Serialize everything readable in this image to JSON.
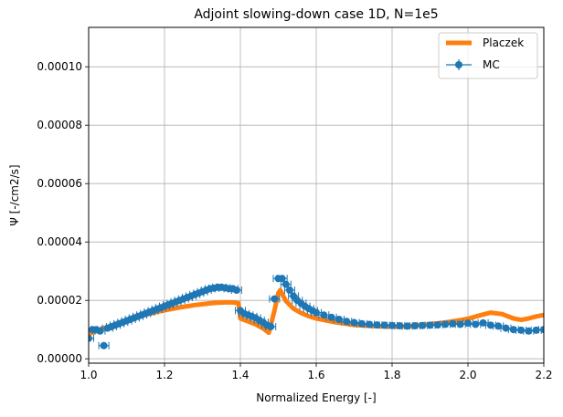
{
  "chart_data": {
    "type": "line",
    "title": "Adjoint slowing-down case 1D, N=1e5",
    "xlabel": "Normalized Energy [-]",
    "ylabel": "Ψ [-/cm2/s]",
    "xlim": [
      1.0,
      2.2
    ],
    "ylim": [
      -1.5e-06,
      0.0001135
    ],
    "grid": true,
    "legend_position": "top-right",
    "x_ticks": [
      {
        "value": 1.0,
        "label": "1.0"
      },
      {
        "value": 1.2,
        "label": "1.2"
      },
      {
        "value": 1.4,
        "label": "1.4"
      },
      {
        "value": 1.6,
        "label": "1.6"
      },
      {
        "value": 1.8,
        "label": "1.8"
      },
      {
        "value": 2.0,
        "label": "2.0"
      },
      {
        "value": 2.2,
        "label": "2.2"
      }
    ],
    "y_ticks": [
      {
        "value": 0.0,
        "label": "0.00000"
      },
      {
        "value": 2e-05,
        "label": "0.00002"
      },
      {
        "value": 4e-05,
        "label": "0.00004"
      },
      {
        "value": 6e-05,
        "label": "0.00006"
      },
      {
        "value": 8e-05,
        "label": "0.00008"
      },
      {
        "value": 0.0001,
        "label": "0.00010"
      }
    ],
    "series": [
      {
        "name": "Placzek",
        "kind": "line",
        "color": "#ff7f0e",
        "x": [
          1.0,
          1.02,
          1.04,
          1.06,
          1.08,
          1.1,
          1.12,
          1.14,
          1.16,
          1.18,
          1.2,
          1.22,
          1.24,
          1.26,
          1.28,
          1.3,
          1.32,
          1.34,
          1.36,
          1.38,
          1.395,
          1.4,
          1.42,
          1.44,
          1.46,
          1.475,
          1.49,
          1.5,
          1.505,
          1.52,
          1.54,
          1.56,
          1.58,
          1.6,
          1.65,
          1.7,
          1.75,
          1.8,
          1.85,
          1.9,
          1.95,
          2.0,
          2.03,
          2.06,
          2.09,
          2.12,
          2.14,
          2.16,
          2.18,
          2.2
        ],
        "y": [
          8.5e-06,
          9.5e-06,
          1.05e-05,
          1.13e-05,
          1.21e-05,
          1.3e-05,
          1.39e-05,
          1.47e-05,
          1.54e-05,
          1.6e-05,
          1.66e-05,
          1.71e-05,
          1.76e-05,
          1.8e-05,
          1.84e-05,
          1.87e-05,
          1.9e-05,
          1.92e-05,
          1.93e-05,
          1.93e-05,
          1.9e-05,
          1.38e-05,
          1.28e-05,
          1.18e-05,
          1.04e-05,
          8.9e-06,
          1.65e-05,
          2.25e-05,
          2.35e-05,
          1.98e-05,
          1.72e-05,
          1.57e-05,
          1.46e-05,
          1.38e-05,
          1.25e-05,
          1.16e-05,
          1.12e-05,
          1.1e-05,
          1.12e-05,
          1.18e-05,
          1.26e-05,
          1.37e-05,
          1.48e-05,
          1.58e-05,
          1.53e-05,
          1.38e-05,
          1.33e-05,
          1.38e-05,
          1.45e-05,
          1.5e-05
        ]
      },
      {
        "name": "MC",
        "kind": "errorbar",
        "color": "#1f77b4",
        "x": [
          1.0,
          1.01,
          1.02,
          1.03,
          1.04,
          1.05,
          1.06,
          1.07,
          1.08,
          1.09,
          1.1,
          1.11,
          1.12,
          1.13,
          1.14,
          1.15,
          1.16,
          1.17,
          1.18,
          1.19,
          1.2,
          1.21,
          1.22,
          1.23,
          1.24,
          1.25,
          1.26,
          1.27,
          1.28,
          1.29,
          1.3,
          1.31,
          1.32,
          1.33,
          1.34,
          1.35,
          1.36,
          1.37,
          1.38,
          1.39,
          1.4,
          1.41,
          1.42,
          1.43,
          1.44,
          1.45,
          1.46,
          1.47,
          1.48,
          1.49,
          1.5,
          1.51,
          1.52,
          1.53,
          1.54,
          1.55,
          1.56,
          1.57,
          1.58,
          1.59,
          1.6,
          1.62,
          1.64,
          1.66,
          1.68,
          1.7,
          1.72,
          1.74,
          1.76,
          1.78,
          1.8,
          1.82,
          1.84,
          1.86,
          1.88,
          1.9,
          1.92,
          1.94,
          1.96,
          1.98,
          2.0,
          2.02,
          2.04,
          2.06,
          2.08,
          2.1,
          2.12,
          2.14,
          2.16,
          2.18,
          2.2
        ],
        "y": [
          7e-06,
          1e-05,
          1e-05,
          9.5e-06,
          4.5e-06,
          1.05e-05,
          1.1e-05,
          1.15e-05,
          1.2e-05,
          1.25e-05,
          1.3e-05,
          1.35e-05,
          1.4e-05,
          1.45e-05,
          1.5e-05,
          1.55e-05,
          1.6e-05,
          1.65e-05,
          1.7e-05,
          1.75e-05,
          1.8e-05,
          1.85e-05,
          1.9e-05,
          1.95e-05,
          2e-05,
          2.05e-05,
          2.1e-05,
          2.15e-05,
          2.2e-05,
          2.25e-05,
          2.3e-05,
          2.35e-05,
          2.4e-05,
          2.42e-05,
          2.45e-05,
          2.45e-05,
          2.43e-05,
          2.4e-05,
          2.4e-05,
          2.35e-05,
          1.65e-05,
          1.55e-05,
          1.5e-05,
          1.45e-05,
          1.4e-05,
          1.32e-05,
          1.25e-05,
          1.15e-05,
          1.1e-05,
          2.05e-05,
          2.75e-05,
          2.75e-05,
          2.55e-05,
          2.35e-05,
          2.15e-05,
          2e-05,
          1.9e-05,
          1.8e-05,
          1.72e-05,
          1.65e-05,
          1.58e-05,
          1.5e-05,
          1.42e-05,
          1.35e-05,
          1.28e-05,
          1.24e-05,
          1.2e-05,
          1.18e-05,
          1.16e-05,
          1.15e-05,
          1.14e-05,
          1.13e-05,
          1.12e-05,
          1.13e-05,
          1.14e-05,
          1.15e-05,
          1.16e-05,
          1.18e-05,
          1.2e-05,
          1.18e-05,
          1.22e-05,
          1.18e-05,
          1.23e-05,
          1.15e-05,
          1.12e-05,
          1.05e-05,
          1e-05,
          9.8e-06,
          9.5e-06,
          9.8e-06,
          1e-05
        ]
      }
    ]
  }
}
